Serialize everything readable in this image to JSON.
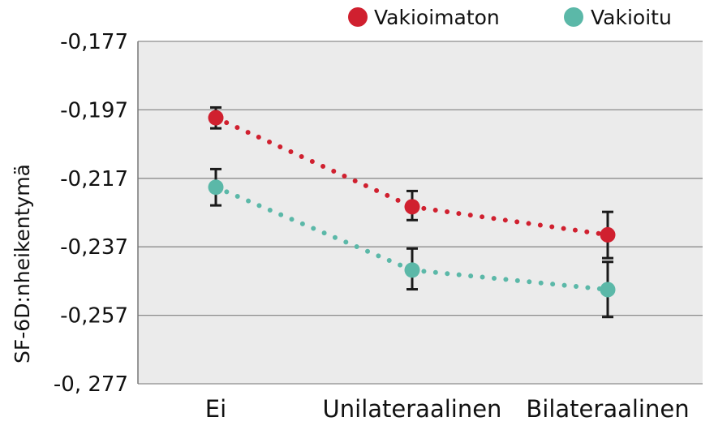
{
  "chart_data": {
    "type": "line",
    "title": "",
    "xlabel": "",
    "ylabel": "SF-6D:nheikentymä",
    "categories": [
      "Ei",
      "Unilateraalinen",
      "Bilateraalinen"
    ],
    "y_tick_labels": [
      "-0,177",
      "-0,197",
      "-0,217",
      "-0,237",
      "-0,257",
      "-0, 277"
    ],
    "y_ticks": [
      -0.177,
      -0.197,
      -0.217,
      -0.237,
      -0.257,
      -0.277
    ],
    "ylim": [
      -0.277,
      -0.177
    ],
    "grid": true,
    "legend_position": "top-right",
    "line_style": "dotted",
    "series": [
      {
        "name": "Vakioimaton",
        "color": "#d0202f",
        "values": [
          -0.1993,
          -0.2253,
          -0.2335
        ],
        "err_low": [
          -0.2024,
          -0.2292,
          -0.2403
        ],
        "err_high": [
          -0.1963,
          -0.2207,
          -0.2268
        ]
      },
      {
        "name": "Vakioitu",
        "color": "#5bb8a8",
        "values": [
          -0.2196,
          -0.2438,
          -0.2495
        ],
        "err_low": [
          -0.2249,
          -0.2494,
          -0.2575
        ],
        "err_high": [
          -0.2143,
          -0.2375,
          -0.2414
        ]
      }
    ]
  }
}
